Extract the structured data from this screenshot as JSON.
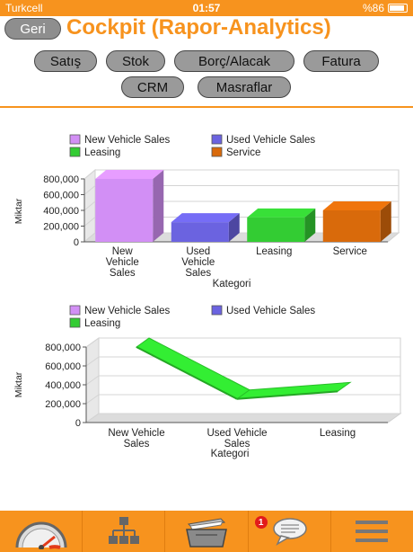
{
  "status_bar": {
    "carrier": "Turkcell",
    "time": "01:57",
    "battery": "%86"
  },
  "header": {
    "back_label": "Geri",
    "title": "Cockpit (Rapor-Analytics)"
  },
  "categories_nav": [
    "Satış",
    "Stok",
    "Borç/Alacak",
    "Fatura",
    "CRM",
    "Masraflar"
  ],
  "chart_data": [
    {
      "type": "bar",
      "categories": [
        "New Vehicle Sales",
        "Used Vehicle Sales",
        "Leasing",
        "Service"
      ],
      "values": [
        800000,
        250000,
        310000,
        400000
      ],
      "colors": [
        "#d28ff5",
        "#6b63e0",
        "#33cc33",
        "#d96a0b"
      ],
      "legend": [
        "New Vehicle Sales",
        "Used Vehicle Sales",
        "Leasing",
        "Service"
      ],
      "xlabel": "Kategori",
      "ylabel": "Miktar",
      "ylim": [
        0,
        800000
      ],
      "yticks": [
        "0",
        "200,000",
        "400,000",
        "600,000",
        "800,000"
      ],
      "legend_position": "top",
      "grid": true
    },
    {
      "type": "line",
      "categories": [
        "New Vehicle Sales",
        "Used Vehicle Sales",
        "Leasing"
      ],
      "values": [
        800000,
        250000,
        330000
      ],
      "color": "#33ee33",
      "legend": [
        "New Vehicle Sales",
        "Used Vehicle Sales",
        "Leasing"
      ],
      "legend_colors": [
        "#d28ff5",
        "#6b63e0",
        "#33cc33"
      ],
      "xlabel": "Kategori",
      "ylabel": "Miktar",
      "ylim": [
        0,
        800000
      ],
      "yticks": [
        "0",
        "200,000",
        "400,000",
        "600,000",
        "800,000"
      ],
      "legend_position": "top",
      "grid": true
    }
  ],
  "tabbar": {
    "items": [
      {
        "icon": "speedometer-icon"
      },
      {
        "icon": "hierarchy-icon"
      },
      {
        "icon": "folder-icon"
      },
      {
        "icon": "chat-bubble-icon",
        "badge": "1"
      },
      {
        "icon": "menu-icon"
      }
    ]
  }
}
